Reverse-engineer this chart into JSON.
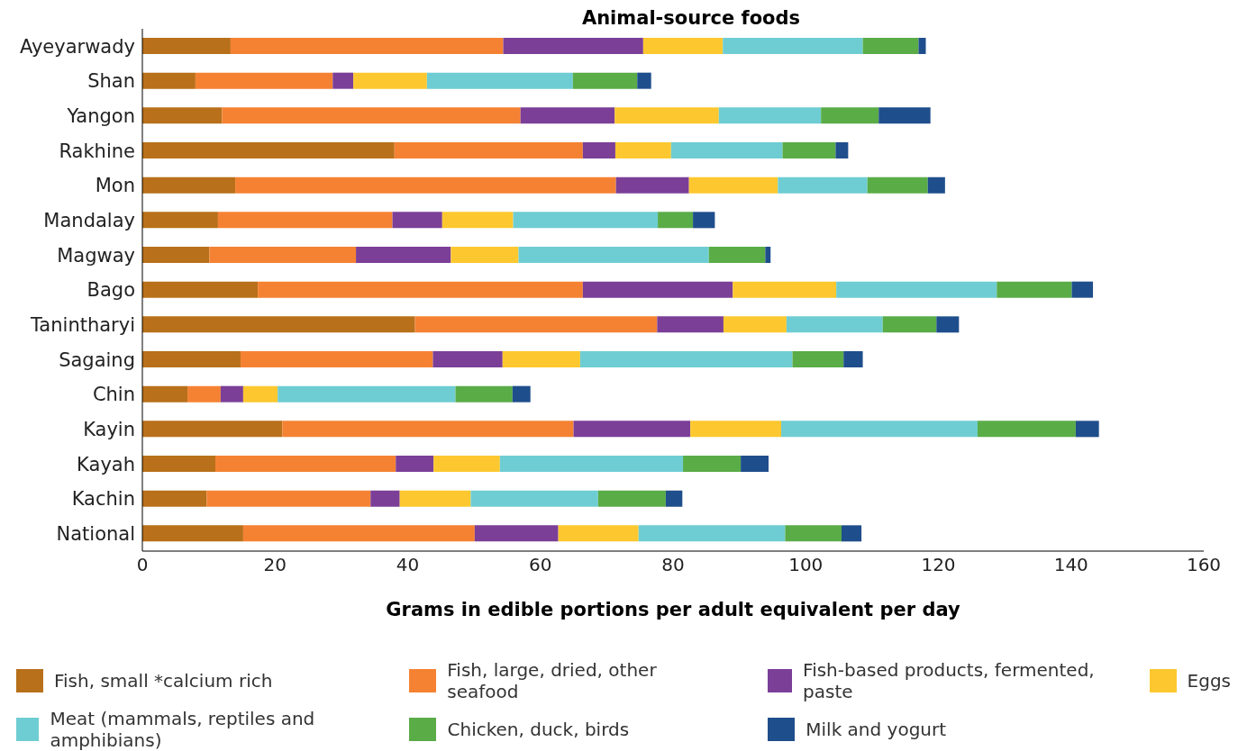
{
  "chart_data": {
    "type": "bar",
    "orientation": "horizontal",
    "stacked": true,
    "title": "Animal-source foods",
    "xlabel": "Grams in edible portions per adult equivalent per day",
    "categories": [
      "Ayeyarwady",
      "Shan",
      "Yangon",
      "Rakhine",
      "Mon",
      "Mandalay",
      "Magway",
      "Bago",
      "Tanintharyi",
      "Sagaing",
      "Chin",
      "Kayin",
      "Kayah",
      "Kachin",
      "National"
    ],
    "xlim": [
      0,
      160
    ],
    "xticks": [
      0,
      20,
      40,
      60,
      80,
      100,
      120,
      140,
      160
    ],
    "legend": "bottom",
    "series": [
      {
        "name": "Fish, small *calcium rich",
        "color": "#b8701a",
        "values": [
          13.3,
          8.0,
          12.0,
          38.0,
          14.0,
          11.4,
          10.1,
          17.4,
          41.1,
          14.8,
          6.8,
          21.1,
          11.0,
          9.7,
          15.2
        ]
      },
      {
        "name": "Fish, large, dried, other seafood",
        "color": "#f58233",
        "values": [
          41.1,
          20.7,
          45.0,
          28.4,
          57.4,
          26.3,
          22.1,
          49.0,
          36.5,
          29.0,
          5.0,
          43.9,
          27.2,
          24.7,
          34.9
        ]
      },
      {
        "name": "Fish-based products, fermented, paste",
        "color": "#7b3f98",
        "values": [
          21.1,
          3.1,
          14.2,
          4.9,
          11.0,
          7.5,
          14.3,
          22.6,
          10.0,
          10.5,
          3.4,
          17.6,
          5.7,
          4.4,
          12.6
        ]
      },
      {
        "name": "Eggs",
        "color": "#fdc82f",
        "values": [
          12.0,
          11.1,
          15.7,
          8.4,
          13.4,
          10.7,
          10.2,
          15.6,
          9.5,
          11.7,
          5.2,
          13.7,
          10.0,
          10.7,
          12.1
        ]
      },
      {
        "name": "Meat (mammals, reptiles and amphibians)",
        "color": "#6ecdd3",
        "values": [
          21.1,
          22.0,
          15.4,
          16.8,
          13.5,
          21.8,
          28.7,
          24.2,
          14.5,
          32.0,
          26.8,
          29.6,
          27.6,
          19.2,
          22.1
        ]
      },
      {
        "name": "Chicken, duck, birds",
        "color": "#5aac47",
        "values": [
          8.4,
          9.7,
          8.7,
          8.0,
          9.1,
          5.3,
          8.5,
          11.3,
          8.1,
          7.7,
          8.6,
          14.8,
          8.7,
          10.2,
          8.5
        ]
      },
      {
        "name": "Milk and yogurt",
        "color": "#1f4e8c",
        "values": [
          1.1,
          2.1,
          7.8,
          1.9,
          2.6,
          3.3,
          0.8,
          3.2,
          3.4,
          2.9,
          2.7,
          3.5,
          4.2,
          2.5,
          3.0
        ]
      }
    ]
  }
}
